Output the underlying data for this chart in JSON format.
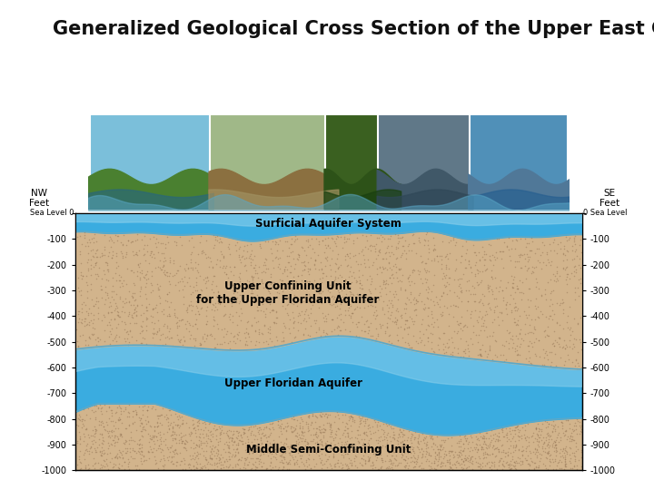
{
  "title": "Generalized Geological Cross Section of the Upper East Coast",
  "title_fontsize": 15,
  "background_color": "#ffffff",
  "ylim": [
    -1000,
    0
  ],
  "yticks": [
    0,
    -100,
    -200,
    -300,
    -400,
    -500,
    -600,
    -700,
    -800,
    -900,
    -1000
  ],
  "nw_label": "NW\nFeet",
  "se_label": "SE\nFeet",
  "sea_level_label_left": "Sea Level 0",
  "sea_level_label_right": "0 Sea Level",
  "labels": {
    "surficial": "Surficial Aquifer System",
    "confining": "Upper Confining Unit\nfor the Upper Floridan Aquifer",
    "floridan": "Upper Floridan Aquifer",
    "semi_conf": "Middle Semi-Confining Unit"
  },
  "colors": {
    "surficial_blue_light": "#87CEEB",
    "surficial_blue": "#5BC8E8",
    "confining_tan": "#D2B48C",
    "confining_dot": "#9B7A5A",
    "floridan_blue_light": "#87CEEB",
    "floridan_blue": "#3AACE0",
    "semi_tan": "#D2B48C",
    "border_line": "#4A9BBF",
    "background": "#ffffff"
  },
  "photo_colors": [
    [
      "#7ab04a",
      "#5a9030",
      "#90c860",
      "#3a7020"
    ],
    [
      "#8a7040",
      "#a08050",
      "#6a5030",
      "#c0a060"
    ],
    [
      "#3a6020",
      "#507a30",
      "#285020",
      "#406828"
    ],
    [
      "#405060",
      "#506878",
      "#304050",
      "#587090"
    ],
    [
      "#3a7890",
      "#2868a0",
      "#5090b0",
      "#1a5880"
    ]
  ]
}
